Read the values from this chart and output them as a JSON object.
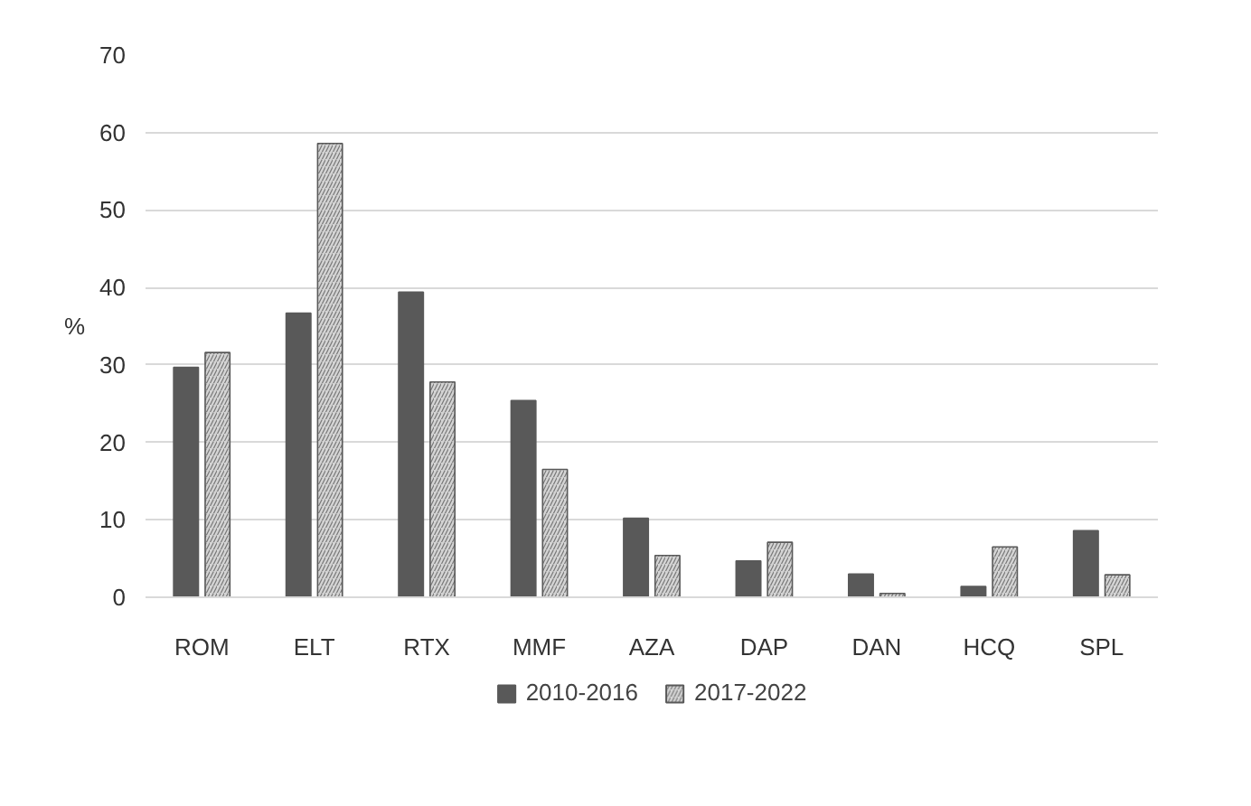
{
  "chart_data": {
    "type": "bar",
    "ylabel": "%",
    "categories": [
      "ROM",
      "ELT",
      "RTX",
      "MMF",
      "AZA",
      "DAP",
      "DAN",
      "HCQ",
      "SPL"
    ],
    "series": [
      {
        "name": "2010-2016",
        "color": "#595959",
        "values": [
          29.7,
          36.7,
          39.4,
          25.4,
          10.2,
          4.7,
          3.0,
          1.4,
          8.6
        ]
      },
      {
        "name": "2017-2022",
        "color": "#d4d4d4",
        "values": [
          31.6,
          58.6,
          27.8,
          16.5,
          5.4,
          7.1,
          0.5,
          6.5,
          2.9
        ]
      }
    ],
    "ylim": [
      0,
      70
    ],
    "yticks": [
      0,
      10,
      20,
      30,
      40,
      50,
      60,
      70
    ],
    "grid": "y",
    "legend": "bottom"
  }
}
